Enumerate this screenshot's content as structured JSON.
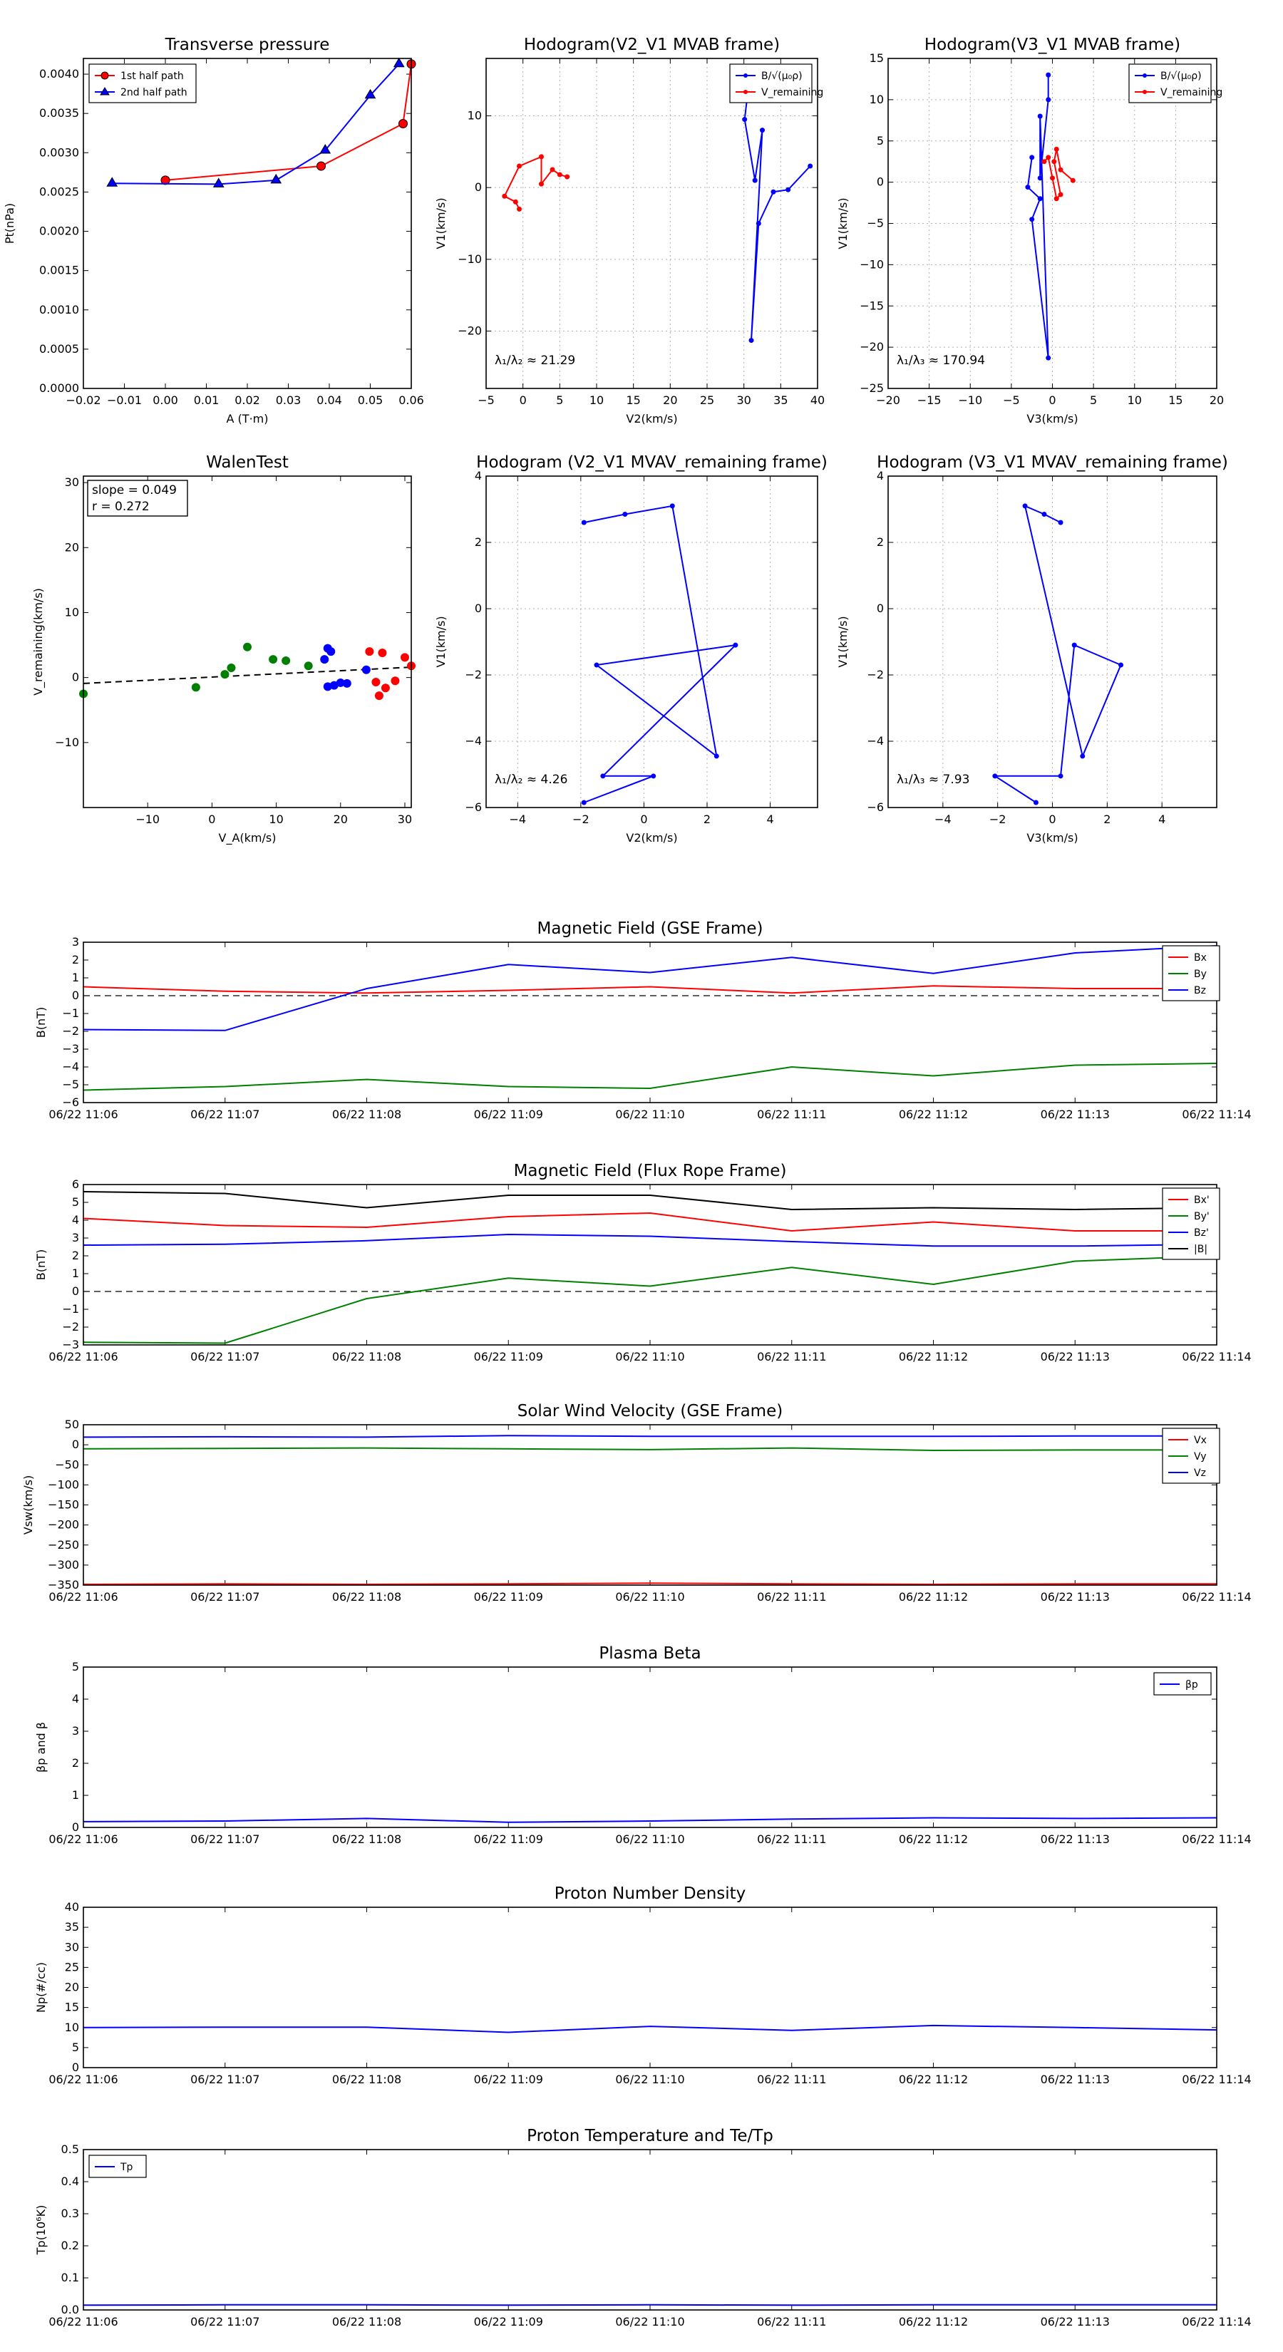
{
  "colors": {
    "red": "#ff0000",
    "green": "#008000",
    "blue": "#0000ff",
    "black": "#000000",
    "grid": "#b0b0b0"
  },
  "chart_data": [
    {
      "id": "tp",
      "type": "line",
      "title": "Transverse pressure",
      "xlabel": "A (T·m)",
      "ylabel": "Pt(nPa)",
      "xlim": [
        -0.02,
        0.06
      ],
      "ylim": [
        0,
        0.0042
      ],
      "xticks": [
        "−0.02",
        "−0.01",
        "0.00",
        "0.01",
        "0.02",
        "0.03",
        "0.04",
        "0.05",
        "0.06"
      ],
      "yticks": [
        "0.0000",
        "0.0005",
        "0.0010",
        "0.0015",
        "0.0020",
        "0.0025",
        "0.0030",
        "0.0035",
        "0.0040"
      ],
      "legend_position": "upper-left",
      "series": [
        {
          "name": "1st half path",
          "color": "red",
          "marker": "circle",
          "x": [
            0.0,
            0.038,
            0.058,
            0.06
          ],
          "y": [
            0.00265,
            0.00283,
            0.00337,
            0.00413
          ]
        },
        {
          "name": "2nd half path",
          "color": "blue",
          "marker": "triangle",
          "x": [
            -0.013,
            0.013,
            0.027,
            0.039,
            0.05,
            0.057
          ],
          "y": [
            0.00261,
            0.0026,
            0.00265,
            0.00303,
            0.00373,
            0.00413
          ]
        }
      ]
    },
    {
      "id": "h21",
      "type": "line",
      "title": "Hodogram(V2_V1 MVAB frame)",
      "xlabel": "V2(km/s)",
      "ylabel": "V1(km/s)",
      "xlim": [
        -5,
        40
      ],
      "ylim": [
        -28,
        18
      ],
      "xticks": [
        "−5",
        "0",
        "5",
        "10",
        "15",
        "20",
        "25",
        "30",
        "35",
        "40"
      ],
      "yticks": [
        "−20",
        "−10",
        "0",
        "10"
      ],
      "annotation": "λ₁/λ₂ ≈ 21.29",
      "legend_position": "upper-right",
      "series": [
        {
          "name": "B/√(μ₀ρ)",
          "color": "blue",
          "x": [
            30.5,
            30.1,
            31.5,
            32.5,
            31.0,
            32.0,
            34.0,
            36.0,
            39.0
          ],
          "y": [
            13.0,
            9.5,
            1.0,
            8.0,
            -21.3,
            -5.0,
            -0.6,
            -0.3,
            3.0
          ]
        },
        {
          "name": "V_remaining",
          "color": "red",
          "x": [
            -0.5,
            -1.0,
            -2.5,
            -0.5,
            2.5,
            2.5,
            4.0,
            5.0,
            6.0
          ],
          "y": [
            -3.0,
            -2.0,
            -1.2,
            3.0,
            4.3,
            0.5,
            2.5,
            1.8,
            1.5
          ]
        }
      ]
    },
    {
      "id": "h31",
      "type": "line",
      "title": "Hodogram(V3_V1 MVAB frame)",
      "xlabel": "V3(km/s)",
      "ylabel": "V1(km/s)",
      "xlim": [
        -20,
        20
      ],
      "ylim": [
        -25,
        15
      ],
      "xticks": [
        "−20",
        "−15",
        "−10",
        "−5",
        "0",
        "5",
        "10",
        "15",
        "20"
      ],
      "yticks": [
        "−25",
        "−20",
        "−15",
        "−10",
        "−5",
        "0",
        "5",
        "10",
        "15"
      ],
      "annotation": "λ₁/λ₃ ≈ 170.94",
      "legend_position": "upper-right",
      "series": [
        {
          "name": "B/√(μ₀ρ)",
          "color": "blue",
          "x": [
            -0.5,
            -0.5,
            -1.5,
            -1.5,
            -0.5,
            -2.5,
            -1.5,
            -3.0,
            -2.5
          ],
          "y": [
            13.0,
            10.0,
            0.5,
            8.0,
            -21.3,
            -4.5,
            -2.0,
            -0.6,
            3.0
          ]
        },
        {
          "name": "V_remaining",
          "color": "red",
          "x": [
            2.5,
            1.0,
            0.5,
            0.2,
            1.0,
            0.5,
            0.0,
            -0.5,
            -1.0
          ],
          "y": [
            0.2,
            1.5,
            4.0,
            2.5,
            -1.5,
            -2.0,
            0.5,
            3.0,
            2.5
          ]
        }
      ]
    },
    {
      "id": "walen",
      "type": "scatter",
      "title": "WalenTest",
      "xlabel": "V_A(km/s)",
      "ylabel": "V_remaining(km/s)",
      "xlim": [
        -20,
        31
      ],
      "ylim": [
        -20,
        31
      ],
      "xticks": [
        "−10",
        "0",
        "10",
        "20",
        "30"
      ],
      "yticks": [
        "−10",
        "0",
        "10",
        "20",
        "30"
      ],
      "annotations": [
        "slope = 0.049",
        "r = 0.272"
      ],
      "fit": {
        "slope": 0.049,
        "x": [
          -20,
          31
        ],
        "y": [
          -0.9,
          1.6
        ]
      },
      "series": [
        {
          "color": "green",
          "x": [
            -20,
            -2.5,
            2,
            3,
            5.5,
            9.5,
            11.5,
            15
          ],
          "y": [
            -2.5,
            -1.5,
            0.5,
            1.5,
            4.7,
            2.8,
            2.6,
            1.8
          ]
        },
        {
          "color": "blue",
          "x": [
            17.5,
            18,
            18.5,
            18,
            19,
            20,
            21,
            24
          ],
          "y": [
            2.8,
            4.5,
            4,
            -1.4,
            -1.2,
            -0.8,
            -0.9,
            1.2
          ]
        },
        {
          "color": "red",
          "x": [
            24.5,
            25.5,
            26,
            26.5,
            27,
            28.5,
            30,
            31
          ],
          "y": [
            4,
            -0.7,
            -2.8,
            3.8,
            -1.6,
            -0.5,
            3.1,
            1.8
          ]
        }
      ]
    },
    {
      "id": "hr21",
      "type": "line",
      "title": "Hodogram (V2_V1 MVAV_remaining frame)",
      "xlabel": "V2(km/s)",
      "ylabel": "V1(km/s)",
      "xlim": [
        -5,
        5.5
      ],
      "ylim": [
        -6,
        4
      ],
      "xticks": [
        "−4",
        "−2",
        "0",
        "2",
        "4"
      ],
      "yticks": [
        "−6",
        "−4",
        "−2",
        "0",
        "2",
        "4"
      ],
      "annotation": "λ₁/λ₂ ≈ 4.26",
      "series": [
        {
          "color": "blue",
          "x": [
            -1.9,
            -0.6,
            0.9,
            2.3,
            -1.5,
            2.9,
            -1.3,
            0.3,
            -1.9
          ],
          "y": [
            2.6,
            2.85,
            3.1,
            -4.45,
            -1.7,
            -1.1,
            -5.05,
            -5.05,
            -5.85
          ]
        }
      ]
    },
    {
      "id": "hr31",
      "type": "line",
      "title": "Hodogram (V3_V1 MVAV_remaining frame)",
      "xlabel": "V3(km/s)",
      "ylabel": "V1(km/s)",
      "xlim": [
        -6,
        6
      ],
      "ylim": [
        -6,
        4
      ],
      "xticks": [
        "−4",
        "−2",
        "0",
        "2",
        "4"
      ],
      "yticks": [
        "−6",
        "−4",
        "−2",
        "0",
        "2",
        "4"
      ],
      "annotation": "λ₁/λ₃ ≈ 7.93",
      "series": [
        {
          "color": "blue",
          "x": [
            0.3,
            -0.3,
            -1.0,
            1.1,
            2.5,
            0.8,
            0.3,
            -2.1,
            -0.6
          ],
          "y": [
            2.6,
            2.85,
            3.1,
            -4.45,
            -1.7,
            -1.1,
            -5.05,
            -5.05,
            -5.85
          ]
        }
      ]
    },
    {
      "id": "bgse",
      "type": "line",
      "title": "Magnetic Field (GSE Frame)",
      "ylabel": "B(nT)",
      "ylim": [
        -6,
        3
      ],
      "yticks": [
        "−6",
        "−5",
        "−4",
        "−3",
        "−2",
        "−1",
        "0",
        "1",
        "2",
        "3"
      ],
      "categories": [
        "06/22 11:06",
        "06/22 11:07",
        "06/22 11:08",
        "06/22 11:09",
        "06/22 11:10",
        "06/22 11:11",
        "06/22 11:12",
        "06/22 11:13",
        "06/22 11:14"
      ],
      "zero_line": true,
      "legend_position": "right",
      "series": [
        {
          "name": "Bx",
          "color": "red",
          "values": [
            0.5,
            0.25,
            0.15,
            0.3,
            0.5,
            0.15,
            0.55,
            0.4,
            0.4
          ]
        },
        {
          "name": "By",
          "color": "green",
          "values": [
            -5.3,
            -5.1,
            -4.7,
            -5.1,
            -5.2,
            -4.0,
            -4.5,
            -3.9,
            -3.8
          ]
        },
        {
          "name": "Bz",
          "color": "blue",
          "values": [
            -1.9,
            -1.95,
            0.4,
            1.75,
            1.3,
            2.15,
            1.25,
            2.4,
            2.8
          ]
        }
      ]
    },
    {
      "id": "bfr",
      "type": "line",
      "title": "Magnetic Field (Flux Rope Frame)",
      "ylabel": "B(nT)",
      "ylim": [
        -3,
        6
      ],
      "yticks": [
        "−3",
        "−2",
        "−1",
        "0",
        "1",
        "2",
        "3",
        "4",
        "5",
        "6"
      ],
      "categories": [
        "06/22 11:06",
        "06/22 11:07",
        "06/22 11:08",
        "06/22 11:09",
        "06/22 11:10",
        "06/22 11:11",
        "06/22 11:12",
        "06/22 11:13",
        "06/22 11:14"
      ],
      "zero_line": true,
      "legend_position": "right",
      "series": [
        {
          "name": "Bx'",
          "color": "red",
          "values": [
            4.1,
            3.7,
            3.6,
            4.2,
            4.4,
            3.4,
            3.9,
            3.4,
            3.4
          ]
        },
        {
          "name": "By'",
          "color": "green",
          "values": [
            -2.85,
            -2.9,
            -0.4,
            0.75,
            0.3,
            1.35,
            0.4,
            1.7,
            2.0
          ]
        },
        {
          "name": "Bz'",
          "color": "blue",
          "values": [
            2.6,
            2.65,
            2.85,
            3.2,
            3.1,
            2.8,
            2.55,
            2.55,
            2.65
          ]
        },
        {
          "name": "|B|",
          "color": "black",
          "values": [
            5.6,
            5.5,
            4.7,
            5.4,
            5.4,
            4.6,
            4.7,
            4.6,
            4.7
          ]
        }
      ]
    },
    {
      "id": "vsw",
      "type": "line",
      "title": "Solar Wind Velocity (GSE Frame)",
      "ylabel": "Vsw(km/s)",
      "ylim": [
        -350,
        50
      ],
      "yticks": [
        "−350",
        "−300",
        "−250",
        "−200",
        "−150",
        "−100",
        "−50",
        "0",
        "50"
      ],
      "categories": [
        "06/22 11:06",
        "06/22 11:07",
        "06/22 11:08",
        "06/22 11:09",
        "06/22 11:10",
        "06/22 11:11",
        "06/22 11:12",
        "06/22 11:13",
        "06/22 11:14"
      ],
      "legend_position": "right",
      "series": [
        {
          "name": "Vx",
          "color": "red",
          "values": [
            -348,
            -347,
            -348,
            -347,
            -345,
            -347,
            -348,
            -347,
            -347
          ]
        },
        {
          "name": "Vy",
          "color": "green",
          "values": [
            -10,
            -9,
            -8,
            -10,
            -12,
            -8,
            -14,
            -13,
            -13
          ]
        },
        {
          "name": "Vz",
          "color": "blue",
          "values": [
            19,
            20,
            19,
            23,
            21,
            21,
            21,
            22,
            22
          ]
        }
      ]
    },
    {
      "id": "beta",
      "type": "line",
      "title": "Plasma Beta",
      "ylabel": "βp and β",
      "ylim": [
        0,
        5
      ],
      "yticks": [
        "0",
        "1",
        "2",
        "3",
        "4",
        "5"
      ],
      "categories": [
        "06/22 11:06",
        "06/22 11:07",
        "06/22 11:08",
        "06/22 11:09",
        "06/22 11:10",
        "06/22 11:11",
        "06/22 11:12",
        "06/22 11:13",
        "06/22 11:14"
      ],
      "legend_position": "upper-right",
      "series": [
        {
          "name": "βp",
          "color": "blue",
          "values": [
            0.18,
            0.2,
            0.28,
            0.16,
            0.2,
            0.26,
            0.3,
            0.28,
            0.3
          ]
        }
      ]
    },
    {
      "id": "np",
      "type": "line",
      "title": "Proton Number Density",
      "ylabel": "Np(#/cc)",
      "ylim": [
        0,
        40
      ],
      "yticks": [
        "0",
        "5",
        "10",
        "15",
        "20",
        "25",
        "30",
        "35",
        "40"
      ],
      "categories": [
        "06/22 11:06",
        "06/22 11:07",
        "06/22 11:08",
        "06/22 11:09",
        "06/22 11:10",
        "06/22 11:11",
        "06/22 11:12",
        "06/22 11:13",
        "06/22 11:14"
      ],
      "series": [
        {
          "name": "Np",
          "color": "blue",
          "values": [
            10.0,
            10.1,
            10.1,
            8.8,
            10.3,
            9.3,
            10.5,
            10.0,
            9.4
          ]
        }
      ]
    },
    {
      "id": "tp2",
      "type": "line",
      "title": "Proton Temperature and Te/Tp",
      "ylabel": "Tp(10⁶K)",
      "ylim": [
        0,
        0.5
      ],
      "yticks": [
        "0.0",
        "0.1",
        "0.2",
        "0.3",
        "0.4",
        "0.5"
      ],
      "categories": [
        "06/22 11:06",
        "06/22 11:07",
        "06/22 11:08",
        "06/22 11:09",
        "06/22 11:10",
        "06/22 11:11",
        "06/22 11:12",
        "06/22 11:13",
        "06/22 11:14"
      ],
      "legend_position": "upper-left",
      "series": [
        {
          "name": "Tp",
          "color": "blue",
          "values": [
            0.015,
            0.016,
            0.016,
            0.015,
            0.016,
            0.015,
            0.016,
            0.016,
            0.016
          ]
        }
      ]
    }
  ]
}
